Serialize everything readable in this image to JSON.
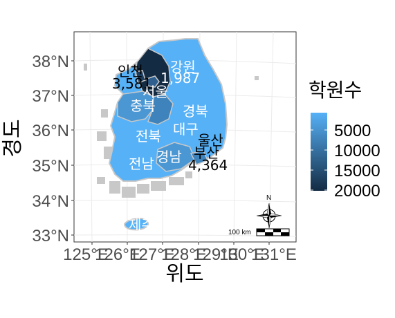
{
  "map": {
    "x_axis": {
      "title": "위도",
      "ticks": [
        "125°E",
        "126°E",
        "127°E",
        "128°E",
        "129°E",
        "130°E",
        "131°E"
      ]
    },
    "y_axis": {
      "title": "경도",
      "ticks": [
        "38°N",
        "37°N",
        "36°N",
        "35°N",
        "34°N",
        "33°N"
      ]
    },
    "legend": {
      "title": "학원수",
      "ticks": [
        "5000",
        "10000",
        "15000",
        "20000"
      ],
      "gradient_colors": [
        "#56B1F7",
        "#132B43"
      ]
    },
    "labels": [
      {
        "name": "인천",
        "value": "3,581",
        "dark": true
      },
      {
        "name": "강원",
        "value": "1,987",
        "dark": false
      },
      {
        "name": "서울",
        "value": "",
        "dark": false
      },
      {
        "name": "충북",
        "value": "",
        "dark": false
      },
      {
        "name": "경북",
        "value": "",
        "dark": false
      },
      {
        "name": "대구",
        "value": "",
        "dark": false
      },
      {
        "name": "전북",
        "value": "",
        "dark": false
      },
      {
        "name": "울산",
        "value": "",
        "dark": true
      },
      {
        "name": "부산",
        "value": "4,364",
        "dark": true
      },
      {
        "name": "경남",
        "value": "",
        "dark": false
      },
      {
        "name": "전남",
        "value": "",
        "dark": false
      },
      {
        "name": "제주",
        "value": "",
        "dark": false
      }
    ],
    "scale_bar": {
      "label": "100 km"
    },
    "north_arrow": {
      "label": "N"
    },
    "colors": {
      "panel_border": "#333333",
      "grid": "#ebebeb",
      "land_light": "#56B1F7",
      "land_dark": "#132B43",
      "islands": "#c8c8c8"
    }
  }
}
